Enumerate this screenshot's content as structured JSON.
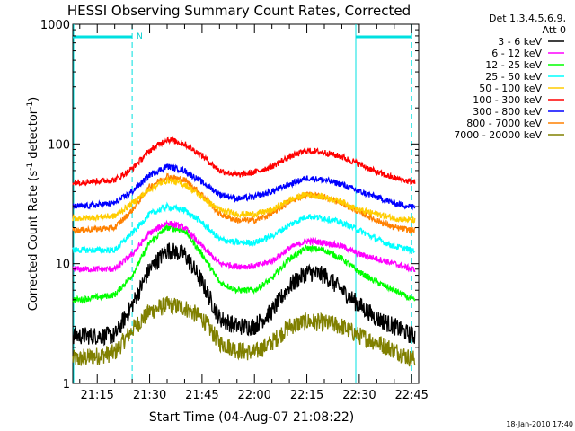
{
  "chart_data": {
    "type": "line",
    "title": "HESSI Observing Summary Count Rates, Corrected",
    "xlabel": "Start Time (04-Aug-07 21:08:22)",
    "ylabel_main": "Corrected Count Rate (s",
    "ylabel_exp1": "-1",
    "ylabel_mid": " detector",
    "ylabel_exp2": "-1",
    "ylabel_end": ")",
    "y_scale": "log",
    "ylim": [
      1,
      1000
    ],
    "xlim": [
      "21:08",
      "22:47"
    ],
    "x_ticks": [
      "21:15",
      "21:30",
      "21:45",
      "22:00",
      "22:15",
      "22:30",
      "22:45"
    ],
    "y_ticks": [
      "1",
      "10",
      "100",
      "1000"
    ],
    "legend_header": [
      "Det 1,3,4,5,6,9,",
      "Att 0"
    ],
    "legend_position": "right",
    "footer_date": "18-Jan-2010 17:40",
    "annotation_n": "N",
    "night_intervals": [
      [
        "21:08",
        "21:25"
      ],
      [
        "22:29",
        "22:45"
      ]
    ],
    "vertical_markers": [
      {
        "time": "21:25",
        "color": "#00e0e0",
        "style": "dashed"
      },
      {
        "time": "22:29",
        "color": "#00e0e0",
        "style": "solid"
      },
      {
        "time": "22:45",
        "color": "#00e0e0",
        "style": "dashed"
      }
    ],
    "x": [
      "21:10",
      "21:20",
      "21:25",
      "21:30",
      "21:35",
      "21:40",
      "21:45",
      "21:50",
      "21:55",
      "22:00",
      "22:05",
      "22:10",
      "22:15",
      "22:20",
      "22:25",
      "22:30",
      "22:35",
      "22:40",
      "22:45"
    ],
    "series": [
      {
        "name": "3 - 6 keV",
        "color": "#000000",
        "values": [
          2.5,
          2.5,
          4.5,
          9,
          13,
          12,
          7,
          3.5,
          3,
          3,
          4,
          6.5,
          8.5,
          8,
          6,
          4.5,
          3.5,
          3,
          2.5
        ]
      },
      {
        "name": "6 - 12 keV",
        "color": "#ff00ff",
        "values": [
          9,
          9,
          12,
          18,
          22,
          20,
          14,
          10,
          9.5,
          9.5,
          10.5,
          13.5,
          15.5,
          15,
          14,
          12,
          11,
          10,
          9
        ]
      },
      {
        "name": "12 - 25 keV",
        "color": "#00ff00",
        "values": [
          5,
          5.5,
          8,
          15,
          20,
          19,
          12,
          7,
          6,
          6,
          7.5,
          11,
          13.5,
          13,
          11,
          8.5,
          7,
          6,
          5
        ]
      },
      {
        "name": "25 - 50 keV",
        "color": "#00ffff",
        "values": [
          13,
          13,
          18,
          26,
          30,
          28,
          22,
          16,
          15,
          15,
          17,
          21,
          25,
          24,
          22,
          19,
          16,
          14,
          13
        ]
      },
      {
        "name": "50 - 100 keV",
        "color": "#ffcc00",
        "values": [
          24,
          25,
          32,
          42,
          50,
          46,
          36,
          28,
          26,
          26,
          28,
          34,
          38,
          36,
          33,
          28,
          26,
          24,
          23
        ]
      },
      {
        "name": "100 - 300 keV",
        "color": "#ff0000",
        "values": [
          48,
          50,
          62,
          88,
          110,
          100,
          80,
          60,
          55,
          58,
          65,
          78,
          88,
          85,
          78,
          68,
          58,
          52,
          48
        ]
      },
      {
        "name": "300 - 800 keV",
        "color": "#0000ff",
        "values": [
          30,
          32,
          40,
          55,
          65,
          60,
          48,
          38,
          35,
          36,
          40,
          46,
          52,
          50,
          46,
          40,
          36,
          32,
          30
        ]
      },
      {
        "name": "800 - 7000 keV",
        "color": "#ff8000",
        "values": [
          19,
          20,
          28,
          44,
          54,
          50,
          38,
          26,
          23,
          23,
          26,
          33,
          38,
          36,
          32,
          27,
          23,
          20,
          19
        ]
      },
      {
        "name": "7000 - 20000 keV",
        "color": "#808000",
        "values": [
          1.6,
          1.8,
          2.8,
          4,
          4.5,
          4.3,
          3.5,
          2.2,
          1.9,
          1.8,
          2.2,
          3,
          3.3,
          3.2,
          3,
          2.5,
          2.2,
          1.9,
          1.6
        ]
      }
    ]
  }
}
